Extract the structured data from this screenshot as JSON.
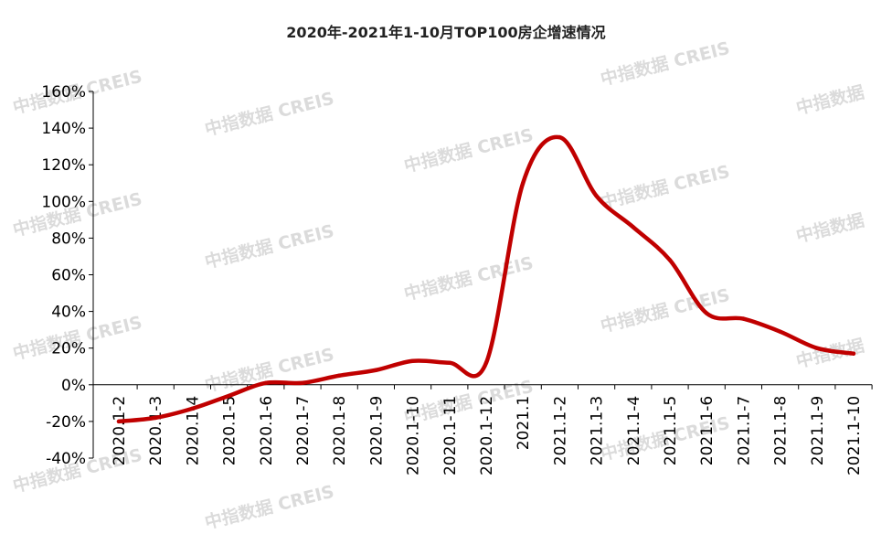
{
  "watermark": {
    "full": "中指数据 CREIS",
    "short": "中指数据",
    "partial": "指数据 CREIS"
  },
  "chart_data": {
    "type": "line",
    "title": "2020年-2021年1-10月TOP100房企增速情况",
    "xlabel": "",
    "ylabel": "",
    "ylim": [
      -40,
      160
    ],
    "yticks": [
      "160%",
      "140%",
      "120%",
      "100%",
      "80%",
      "60%",
      "40%",
      "20%",
      "0%",
      "-20%",
      "-40%"
    ],
    "categories": [
      "2020.1-2",
      "2020.1-3",
      "2020.1-4",
      "2020.1-5",
      "2020.1-6",
      "2020.1-7",
      "2020.1-8",
      "2020.1-9",
      "2020.1-10",
      "2020.1-11",
      "2020.1-12",
      "2021.1",
      "2021.1-2",
      "2021.1-3",
      "2021.1-4",
      "2021.1-5",
      "2021.1-6",
      "2021.1-7",
      "2021.1-8",
      "2021.1-9",
      "2021.1-10"
    ],
    "series": [
      {
        "name": "",
        "color": "#c00000",
        "values": [
          -20,
          -18,
          -13,
          -6,
          1,
          1,
          5,
          8,
          13,
          12,
          12,
          110,
          135,
          103,
          86,
          68,
          39,
          36,
          29,
          20,
          17
        ]
      }
    ],
    "grid": false,
    "legend": "none"
  }
}
